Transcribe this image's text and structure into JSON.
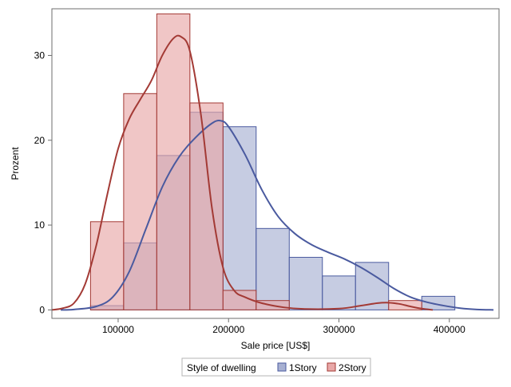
{
  "chart_data": {
    "type": "histogram",
    "xlabel": "Sale price [US$]",
    "ylabel": "Prozent",
    "xlim": [
      40000,
      445000
    ],
    "ylim": [
      -1,
      35.5
    ],
    "x_ticks": [
      100000,
      200000,
      300000,
      400000
    ],
    "x_tick_labels": [
      "100000",
      "200000",
      "300000",
      "400000"
    ],
    "y_ticks": [
      0,
      10,
      20,
      30
    ],
    "y_tick_labels": [
      "0",
      "10",
      "20",
      "30"
    ],
    "grid": false,
    "legend": {
      "title": "Style of dwelling",
      "placement": "bottom-center"
    },
    "bin_edges": [
      75000,
      105000,
      135000,
      165000,
      195000,
      225000,
      255000,
      285000,
      315000,
      345000,
      375000,
      405000
    ],
    "series": [
      {
        "name": "1Story",
        "color": "#4a5a9f",
        "fill": "#a7b0d2",
        "values": [
          0.5,
          7.9,
          18.2,
          23.3,
          21.6,
          9.6,
          6.2,
          4.0,
          5.6,
          0.0,
          1.6
        ],
        "density_curve": [
          [
            48000,
            0.0
          ],
          [
            60000,
            0.05
          ],
          [
            80000,
            0.4
          ],
          [
            95000,
            1.5
          ],
          [
            110000,
            4.5
          ],
          [
            125000,
            9.5
          ],
          [
            140000,
            14.5
          ],
          [
            155000,
            18.0
          ],
          [
            170000,
            20.3
          ],
          [
            185000,
            22.0
          ],
          [
            193000,
            22.3
          ],
          [
            200000,
            21.6
          ],
          [
            215000,
            18.3
          ],
          [
            230000,
            14.2
          ],
          [
            245000,
            11.0
          ],
          [
            260000,
            9.0
          ],
          [
            275000,
            7.7
          ],
          [
            290000,
            6.8
          ],
          [
            305000,
            6.0
          ],
          [
            320000,
            5.0
          ],
          [
            335000,
            3.8
          ],
          [
            350000,
            2.5
          ],
          [
            365000,
            1.5
          ],
          [
            380000,
            0.9
          ],
          [
            395000,
            0.5
          ],
          [
            410000,
            0.2
          ],
          [
            425000,
            0.05
          ],
          [
            440000,
            0.0
          ]
        ]
      },
      {
        "name": "2Story",
        "color": "#a33a35",
        "fill": "#e8a8a8",
        "values": [
          10.4,
          25.5,
          34.9,
          24.4,
          2.3,
          1.1,
          0.0,
          0.0,
          0.0,
          1.1,
          0.0
        ],
        "density_curve": [
          [
            40000,
            0.0
          ],
          [
            50000,
            0.2
          ],
          [
            60000,
            0.8
          ],
          [
            70000,
            3.0
          ],
          [
            80000,
            7.5
          ],
          [
            90000,
            13.5
          ],
          [
            100000,
            19.0
          ],
          [
            110000,
            22.5
          ],
          [
            120000,
            24.8
          ],
          [
            130000,
            27.0
          ],
          [
            140000,
            30.0
          ],
          [
            150000,
            32.0
          ],
          [
            157000,
            32.2
          ],
          [
            165000,
            30.5
          ],
          [
            175000,
            23.0
          ],
          [
            185000,
            12.0
          ],
          [
            195000,
            5.0
          ],
          [
            205000,
            2.3
          ],
          [
            215000,
            1.5
          ],
          [
            230000,
            0.8
          ],
          [
            250000,
            0.3
          ],
          [
            270000,
            0.1
          ],
          [
            300000,
            0.15
          ],
          [
            320000,
            0.5
          ],
          [
            335000,
            0.8
          ],
          [
            345000,
            0.85
          ],
          [
            355000,
            0.7
          ],
          [
            365000,
            0.4
          ],
          [
            375000,
            0.15
          ],
          [
            385000,
            0.0
          ]
        ]
      }
    ]
  }
}
